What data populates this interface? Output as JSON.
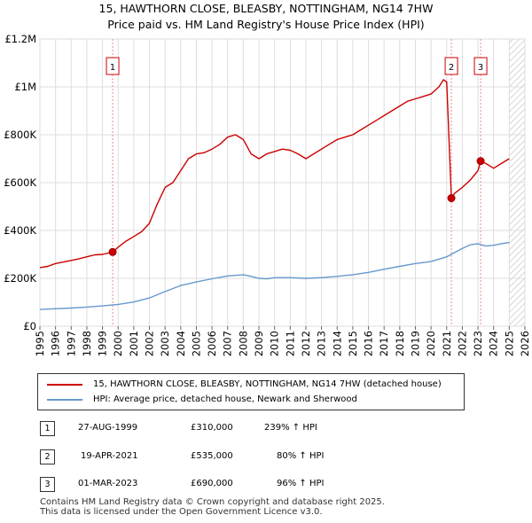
{
  "header": {
    "title_line1": "15, HAWTHORN CLOSE, BLEASBY, NOTTINGHAM, NG14 7HW",
    "title_line2": "Price paid vs. HM Land Registry's House Price Index (HPI)"
  },
  "chart_data": {
    "type": "line",
    "title": "15, HAWTHORN CLOSE, BLEASBY, NOTTINGHAM, NG14 7HW — Price paid vs. HM Land Registry's House Price Index (HPI)",
    "xlabel": "",
    "ylabel": "",
    "xlim": [
      1995,
      2026
    ],
    "ylim": [
      0,
      1200000
    ],
    "x_ticks": [
      1995,
      1996,
      1997,
      1998,
      1999,
      2000,
      2001,
      2002,
      2003,
      2004,
      2005,
      2006,
      2007,
      2008,
      2009,
      2010,
      2011,
      2012,
      2013,
      2014,
      2015,
      2016,
      2017,
      2018,
      2019,
      2020,
      2021,
      2022,
      2023,
      2024,
      2025,
      2026
    ],
    "x_tick_labels": [
      "1995",
      "1996",
      "1997",
      "1998",
      "1999",
      "2000",
      "2001",
      "2002",
      "2003",
      "2004",
      "2005",
      "2006",
      "2007",
      "2008",
      "2009",
      "2010",
      "2011",
      "2012",
      "2013",
      "2014",
      "2015",
      "2016",
      "2017",
      "2018",
      "2019",
      "2020",
      "2021",
      "2022",
      "2023",
      "2024",
      "2025",
      "2026"
    ],
    "y_ticks": [
      0,
      200000,
      400000,
      600000,
      800000,
      1000000,
      1200000
    ],
    "y_tick_labels": [
      "£0",
      "£200K",
      "£400K",
      "£600K",
      "£800K",
      "£1M",
      "£1.2M"
    ],
    "grid": true,
    "hatched_future_from": 2025.0,
    "series": [
      {
        "name": "15, HAWTHORN CLOSE, BLEASBY, NOTTINGHAM, NG14 7HW (detached house)",
        "color": "#cc0000",
        "x": [
          1995.0,
          1995.5,
          1996.0,
          1996.5,
          1997.0,
          1997.5,
          1998.0,
          1998.5,
          1999.0,
          1999.65,
          2000.0,
          2000.5,
          2001.0,
          2001.5,
          2002.0,
          2002.5,
          2003.0,
          2003.5,
          2004.0,
          2004.5,
          2005.0,
          2005.5,
          2006.0,
          2006.5,
          2007.0,
          2007.5,
          2008.0,
          2008.5,
          2009.0,
          2009.5,
          2010.0,
          2010.5,
          2011.0,
          2011.5,
          2012.0,
          2012.5,
          2013.0,
          2013.5,
          2014.0,
          2014.5,
          2015.0,
          2015.5,
          2016.0,
          2016.5,
          2017.0,
          2017.5,
          2018.0,
          2018.5,
          2019.0,
          2019.5,
          2020.0,
          2020.5,
          2020.8,
          2021.0,
          2021.3,
          2021.5,
          2022.0,
          2022.5,
          2023.0,
          2023.17,
          2023.5,
          2024.0,
          2024.5,
          2025.0
        ],
        "values": [
          245000,
          250000,
          262000,
          268000,
          275000,
          282000,
          290000,
          298000,
          300000,
          310000,
          330000,
          355000,
          375000,
          395000,
          430000,
          510000,
          580000,
          600000,
          650000,
          700000,
          720000,
          725000,
          740000,
          760000,
          790000,
          800000,
          780000,
          720000,
          700000,
          720000,
          730000,
          740000,
          735000,
          720000,
          700000,
          720000,
          740000,
          760000,
          780000,
          790000,
          800000,
          820000,
          840000,
          860000,
          880000,
          900000,
          920000,
          940000,
          950000,
          960000,
          970000,
          1000000,
          1030000,
          1020000,
          535000,
          555000,
          580000,
          610000,
          650000,
          690000,
          680000,
          660000,
          680000,
          700000
        ]
      },
      {
        "name": "HPI: Average price, detached house, Newark and Sherwood",
        "color": "#6699cc",
        "x": [
          1995.0,
          1996.0,
          1997.0,
          1998.0,
          1999.0,
          2000.0,
          2001.0,
          2002.0,
          2003.0,
          2004.0,
          2005.0,
          2006.0,
          2007.0,
          2008.0,
          2008.5,
          2009.0,
          2009.5,
          2010.0,
          2011.0,
          2012.0,
          2013.0,
          2014.0,
          2015.0,
          2016.0,
          2017.0,
          2018.0,
          2019.0,
          2020.0,
          2021.0,
          2022.0,
          2022.5,
          2023.0,
          2023.5,
          2024.0,
          2024.5,
          2025.0
        ],
        "values": [
          70000,
          73000,
          76000,
          80000,
          85000,
          91000,
          101000,
          118000,
          145000,
          170000,
          185000,
          198000,
          210000,
          215000,
          208000,
          200000,
          198000,
          203000,
          203000,
          200000,
          203000,
          208000,
          215000,
          225000,
          238000,
          250000,
          262000,
          270000,
          290000,
          325000,
          340000,
          345000,
          335000,
          338000,
          345000,
          350000
        ]
      }
    ],
    "sales": [
      {
        "label": "1",
        "x": 1999.65,
        "value": 310000
      },
      {
        "label": "2",
        "x": 2021.3,
        "value": 535000
      },
      {
        "label": "3",
        "x": 2023.17,
        "value": 690000
      }
    ]
  },
  "legend": {
    "items": [
      {
        "label": "15, HAWTHORN CLOSE, BLEASBY, NOTTINGHAM, NG14 7HW (detached house)",
        "color": "#cc0000"
      },
      {
        "label": "HPI: Average price, detached house, Newark and Sherwood",
        "color": "#6699cc"
      }
    ]
  },
  "transactions": [
    {
      "num": "1",
      "date": "27-AUG-1999",
      "price": "£310,000",
      "hpi": "239% ↑ HPI"
    },
    {
      "num": "2",
      "date": "19-APR-2021",
      "price": "£535,000",
      "hpi": "80% ↑ HPI"
    },
    {
      "num": "3",
      "date": "01-MAR-2023",
      "price": "£690,000",
      "hpi": "96% ↑ HPI"
    }
  ],
  "footer": {
    "line1": "Contains HM Land Registry data © Crown copyright and database right 2025.",
    "line2": "This data is licensed under the Open Government Licence v3.0."
  }
}
